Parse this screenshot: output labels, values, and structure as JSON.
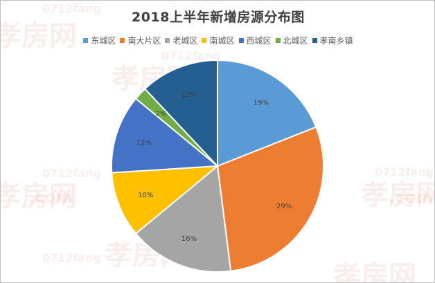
{
  "watermark": {
    "main": "孝房网",
    "sub": "0712fang",
    "com": ".com"
  },
  "chart_data": {
    "type": "pie",
    "title": "2018上半年新增房源分布图",
    "legend_position": "top",
    "slices": [
      {
        "label": "东城区",
        "value": 19,
        "value_label": "19%",
        "color": "#5b9bd5"
      },
      {
        "label": "南大片区",
        "value": 29,
        "value_label": "29%",
        "color": "#ed7d31"
      },
      {
        "label": "老城区",
        "value": 16,
        "value_label": "16%",
        "color": "#a5a5a5"
      },
      {
        "label": "南城区",
        "value": 10,
        "value_label": "10%",
        "color": "#ffc000"
      },
      {
        "label": "西城区",
        "value": 12,
        "value_label": "12%",
        "color": "#4472c4"
      },
      {
        "label": "北城区",
        "value": 2,
        "value_label": "2%",
        "color": "#70ad47"
      },
      {
        "label": "孝南乡镇",
        "value": 12,
        "value_label": "12%",
        "color": "#255e91"
      }
    ]
  }
}
